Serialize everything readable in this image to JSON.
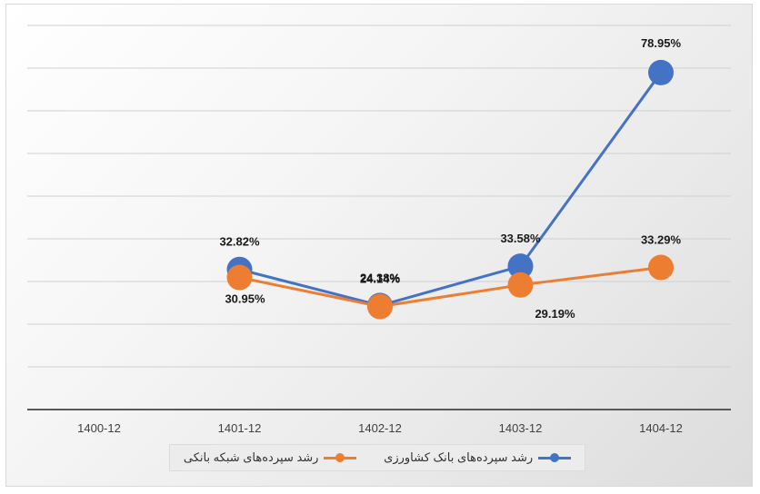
{
  "chart_data": {
    "type": "line",
    "categories": [
      "1400-12",
      "1401-12",
      "1402-12",
      "1403-12",
      "1404-12"
    ],
    "series": [
      {
        "name": "رشد سپرده‌های بانک کشاورزی",
        "color": "#4472c4",
        "values": [
          null,
          32.82,
          24.38,
          33.58,
          78.95
        ],
        "labels": [
          "",
          "32.82%",
          "24.38%",
          "33.58%",
          "78.95%"
        ]
      },
      {
        "name": "رشد سپرده‌های شبکه بانکی",
        "color": "#ed7d31",
        "values": [
          null,
          30.95,
          24.14,
          29.19,
          33.29
        ],
        "labels": [
          "",
          "30.95%",
          "24.14%",
          "29.19%",
          "33.29%"
        ]
      }
    ],
    "ylim": [
      0,
      90
    ],
    "grid": true,
    "legend_position": "bottom",
    "title": "",
    "xlabel": "",
    "ylabel": ""
  }
}
